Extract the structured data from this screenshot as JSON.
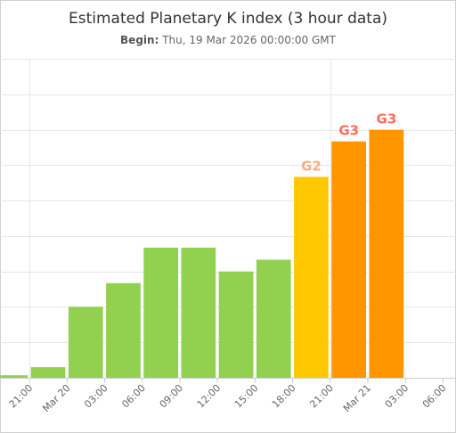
{
  "header": {
    "title": "Estimated Planetary K index (3 hour data)",
    "begin_label": "Begin:",
    "begin_value": "Thu, 19 Mar 2026 00:00:00 GMT"
  },
  "colors": {
    "quiet": "#92d050",
    "g1_g2": "#ffc800",
    "g3": "#ff9600",
    "g2_label": "#ffaa80",
    "g3_label": "#ff6e5a"
  },
  "chart_data": {
    "type": "bar",
    "title": "Estimated Planetary K index (3 hour data)",
    "subtitle": "Begin: Thu, 19 Mar 2026 00:00:00 GMT",
    "xlabel": "",
    "ylabel": "",
    "ylim": [
      0,
      9
    ],
    "grid": true,
    "x_ticks": [
      "21:00",
      "Mar 20",
      "03:00",
      "06:00",
      "09:00",
      "12:00",
      "15:00",
      "18:00",
      "21:00",
      "Mar 21",
      "03:00",
      "06:00"
    ],
    "bars": [
      {
        "time": "19 Mar 21:00",
        "value": 0.07,
        "label": ""
      },
      {
        "time": "20 Mar 00:00",
        "value": 0.3,
        "label": ""
      },
      {
        "time": "20 Mar 03:00",
        "value": 2.0,
        "label": ""
      },
      {
        "time": "20 Mar 06:00",
        "value": 2.67,
        "label": ""
      },
      {
        "time": "20 Mar 09:00",
        "value": 3.67,
        "label": ""
      },
      {
        "time": "20 Mar 12:00",
        "value": 3.67,
        "label": ""
      },
      {
        "time": "20 Mar 15:00",
        "value": 3.0,
        "label": ""
      },
      {
        "time": "20 Mar 18:00",
        "value": 3.33,
        "label": ""
      },
      {
        "time": "20 Mar 21:00",
        "value": 5.67,
        "label": "G2"
      },
      {
        "time": "21 Mar 00:00",
        "value": 6.67,
        "label": "G3"
      },
      {
        "time": "21 Mar 03:00",
        "value": 7.0,
        "label": "G3"
      }
    ]
  }
}
